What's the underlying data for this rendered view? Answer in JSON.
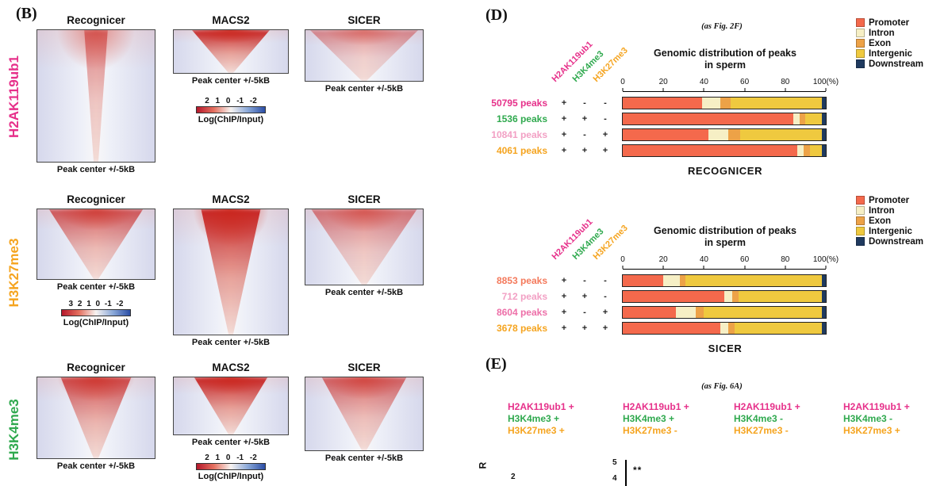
{
  "panel_b": {
    "label": "(B)",
    "heatmap_caption": "Peak center +/-5kB",
    "colorbar_label": "Log(ChIP/Input)",
    "rows": [
      {
        "mark": "H2AK119ub1",
        "color": "#E6308A",
        "cells": [
          {
            "caller": "Recognicer"
          },
          {
            "caller": "MACS2",
            "colorbar_ticks": "2 1 0 -1 -2"
          },
          {
            "caller": "SICER"
          }
        ]
      },
      {
        "mark": "H3K27me3",
        "color": "#F5A41F",
        "cells": [
          {
            "caller": "Recognicer",
            "colorbar_ticks": "3 2 1 0 -1 -2"
          },
          {
            "caller": "MACS2"
          },
          {
            "caller": "SICER"
          }
        ]
      },
      {
        "mark": "H3K4me3",
        "color": "#2FA94E",
        "cells": [
          {
            "caller": "Recognicer"
          },
          {
            "caller": "MACS2",
            "colorbar_ticks": "2 1 0 -1 -2"
          },
          {
            "caller": "SICER"
          }
        ]
      }
    ]
  },
  "panel_d": {
    "label": "(D)",
    "annotation": "(as Fig. 2F)"
  },
  "chart_data": [
    {
      "type": "bar",
      "subtype": "stacked-horizontal",
      "name": "RECOGNICER",
      "title_line1": "Genomic distribution of peaks",
      "title_line2": "in sperm",
      "axis_ticks": [
        "0",
        "20",
        "40",
        "60",
        "80",
        "100(%)"
      ],
      "axis_range": [
        0,
        100
      ],
      "colors": [
        "#F4694C",
        "#F6EFC5",
        "#EDA247",
        "#EFC93F",
        "#1F3A5F"
      ],
      "legend": [
        {
          "label": "Promoter",
          "color": "#F4694C"
        },
        {
          "label": "Intron",
          "color": "#F6EFC5"
        },
        {
          "label": "Exon",
          "color": "#EDA247"
        },
        {
          "label": "Intergenic",
          "color": "#EFC93F"
        },
        {
          "label": "Downstream",
          "color": "#1F3A5F"
        }
      ],
      "col_headers": [
        {
          "label": "H2AK119ub1",
          "color": "#E6308A"
        },
        {
          "label": "H3K4me3",
          "color": "#2FA94E"
        },
        {
          "label": "H3K27me3",
          "color": "#F5A41F"
        }
      ],
      "rows": [
        {
          "label": "50795 peaks",
          "label_color": "#E6308A",
          "flags": [
            "+",
            "-",
            "-"
          ],
          "values": [
            39,
            9,
            5,
            45,
            2
          ]
        },
        {
          "label": "1536 peaks",
          "label_color": "#2FA94E",
          "flags": [
            "+",
            "+",
            "-"
          ],
          "values": [
            84,
            3,
            3,
            8,
            2
          ]
        },
        {
          "label": "10841 peaks",
          "label_color": "#F2A0C4",
          "flags": [
            "+",
            "-",
            "+"
          ],
          "values": [
            42,
            10,
            6,
            40,
            2
          ]
        },
        {
          "label": "4061 peaks",
          "label_color": "#F5A41F",
          "flags": [
            "+",
            "+",
            "+"
          ],
          "values": [
            86,
            3,
            3,
            6,
            2
          ]
        }
      ]
    },
    {
      "type": "bar",
      "subtype": "stacked-horizontal",
      "name": "SICER",
      "title_line1": "Genomic distribution of peaks",
      "title_line2": "in sperm",
      "axis_ticks": [
        "0",
        "20",
        "40",
        "60",
        "80",
        "100(%)"
      ],
      "axis_range": [
        0,
        100
      ],
      "colors": [
        "#F4694C",
        "#F6EFC5",
        "#EDA247",
        "#EFC93F",
        "#1F3A5F"
      ],
      "legend": [
        {
          "label": "Promoter",
          "color": "#F4694C"
        },
        {
          "label": "Intron",
          "color": "#F6EFC5"
        },
        {
          "label": "Exon",
          "color": "#EDA247"
        },
        {
          "label": "Intergenic",
          "color": "#EFC93F"
        },
        {
          "label": "Downstream",
          "color": "#1F3A5F"
        }
      ],
      "col_headers": [
        {
          "label": "H2AK119ub1",
          "color": "#E6308A"
        },
        {
          "label": "H3K4me3",
          "color": "#2FA94E"
        },
        {
          "label": "H3K27me3",
          "color": "#F5A41F"
        }
      ],
      "rows": [
        {
          "label": "8853 peaks",
          "label_color": "#F4795B",
          "flags": [
            "+",
            "-",
            "-"
          ],
          "values": [
            20,
            8,
            3,
            67,
            2
          ]
        },
        {
          "label": "712 peaks",
          "label_color": "#F2A0C4",
          "flags": [
            "+",
            "+",
            "-"
          ],
          "values": [
            50,
            4,
            3,
            41,
            2
          ]
        },
        {
          "label": "8604 peaks",
          "label_color": "#ED6FA8",
          "flags": [
            "+",
            "-",
            "+"
          ],
          "values": [
            26,
            10,
            4,
            58,
            2
          ]
        },
        {
          "label": "3678 peaks",
          "label_color": "#F5A41F",
          "flags": [
            "+",
            "+",
            "+"
          ],
          "values": [
            48,
            4,
            3,
            43,
            2
          ]
        }
      ]
    }
  ],
  "panel_e": {
    "label": "(E)",
    "annotation": "(as Fig. 6A)",
    "groups": [
      {
        "lines": [
          {
            "text": "H2AK119ub1 +",
            "color": "#E6308A"
          },
          {
            "text": "H3K4me3 +",
            "color": "#2FA94E"
          },
          {
            "text": "H3K27me3 +",
            "color": "#F5A41F"
          }
        ]
      },
      {
        "lines": [
          {
            "text": "H2AK119ub1 +",
            "color": "#E6308A"
          },
          {
            "text": "H3K4me3 +",
            "color": "#2FA94E"
          },
          {
            "text": "H3K27me3 -",
            "color": "#F5A41F"
          }
        ]
      },
      {
        "lines": [
          {
            "text": "H2AK119ub1 +",
            "color": "#E6308A"
          },
          {
            "text": "H3K4me3 -",
            "color": "#2FA94E"
          },
          {
            "text": "H3K27me3 -",
            "color": "#F5A41F"
          }
        ]
      },
      {
        "lines": [
          {
            "text": "H2AK119ub1 +",
            "color": "#E6308A"
          },
          {
            "text": "H3K4me3 -",
            "color": "#2FA94E"
          },
          {
            "text": "H3K27me3 +",
            "color": "#F5A41F"
          }
        ]
      }
    ],
    "fragments": {
      "rotated_label": "R",
      "left_axis_tick": "2",
      "axis_tick_top": "5",
      "axis_tick_below": "4",
      "significance": "**"
    }
  }
}
